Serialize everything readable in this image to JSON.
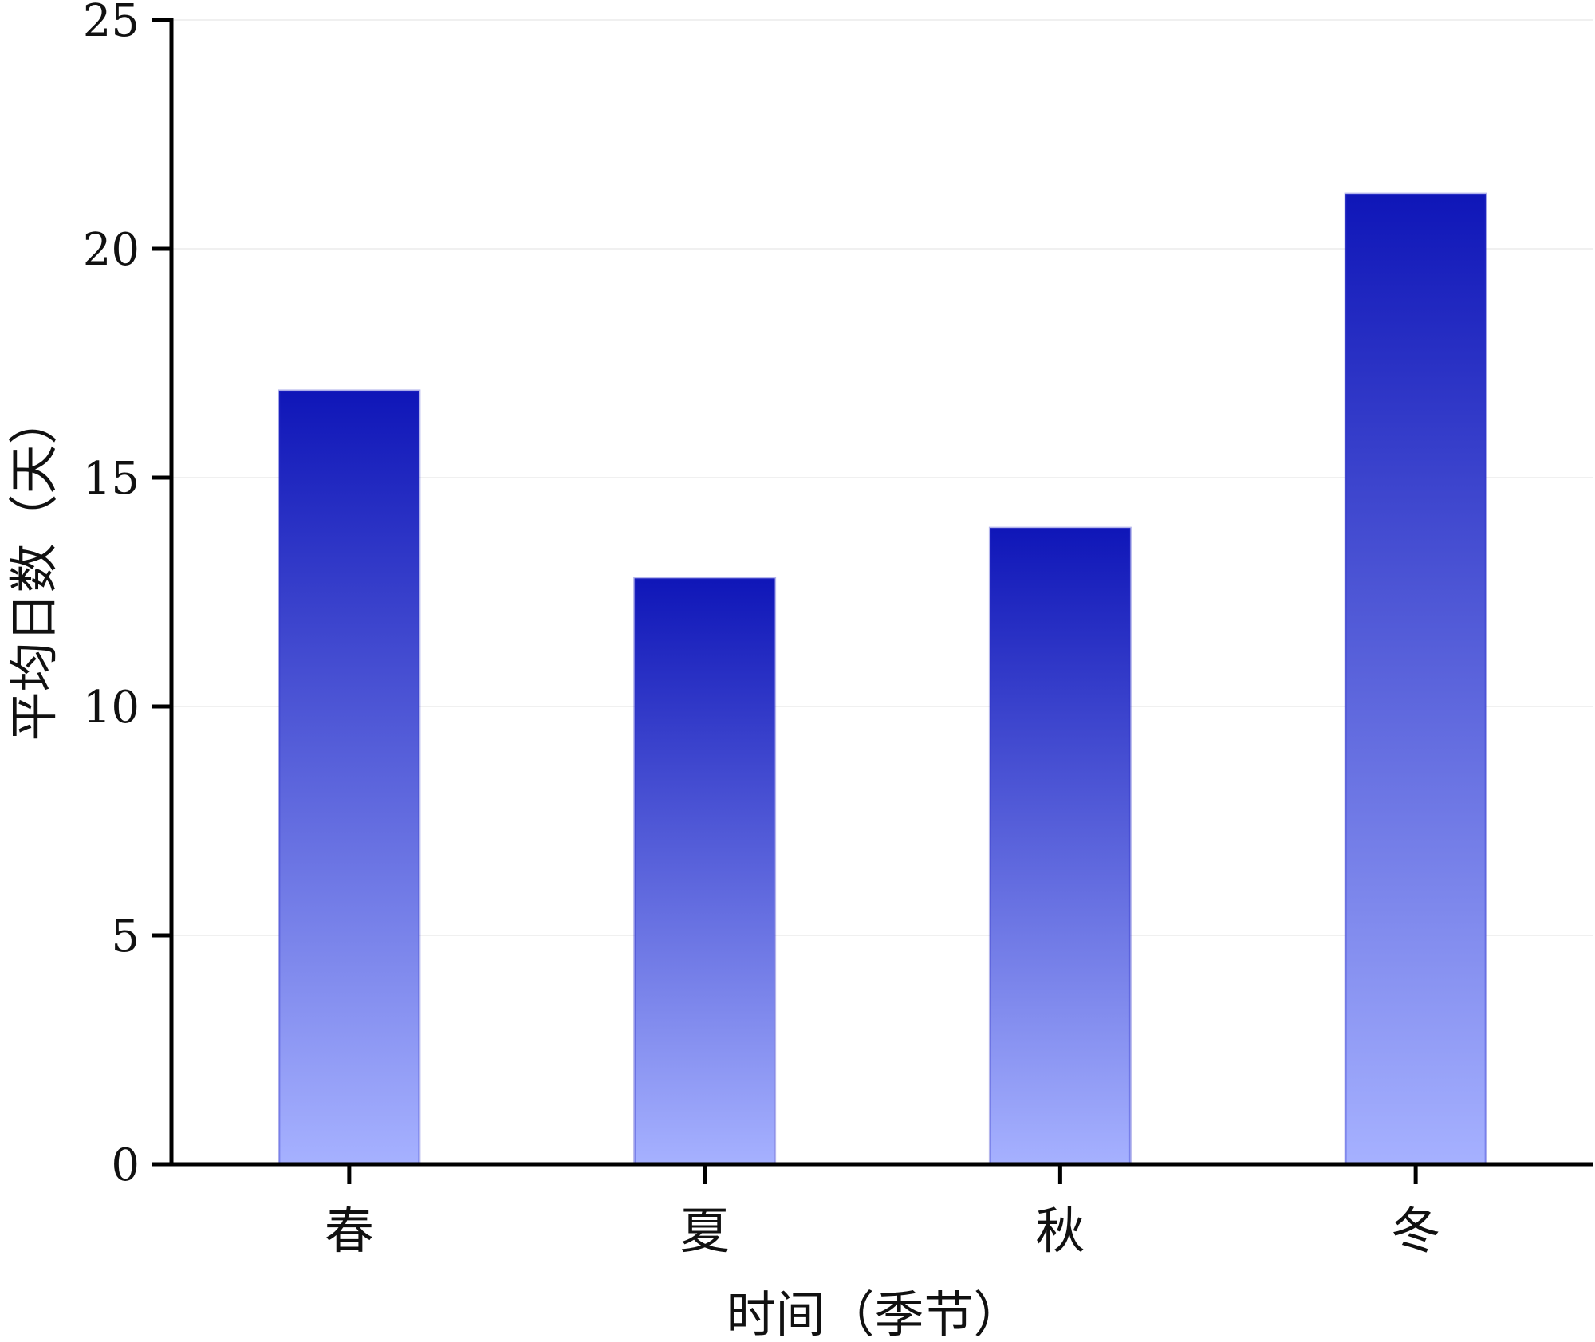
{
  "chart_data": {
    "type": "bar",
    "title": "",
    "xlabel": "时间（季节）",
    "ylabel": "平均日数（天）",
    "categories": [
      "春",
      "夏",
      "秋",
      "冬"
    ],
    "values": [
      16.9,
      12.8,
      13.9,
      21.2
    ],
    "ylim": [
      0,
      25
    ],
    "yticks": [
      "0",
      "5",
      "10",
      "15",
      "20",
      "25"
    ],
    "grid": true,
    "legend": "none",
    "colors": {
      "bar_top": "#0f16b8",
      "bar_bottom": "#a6b1ff",
      "axis": "#000000",
      "grid": "#ececec"
    }
  }
}
